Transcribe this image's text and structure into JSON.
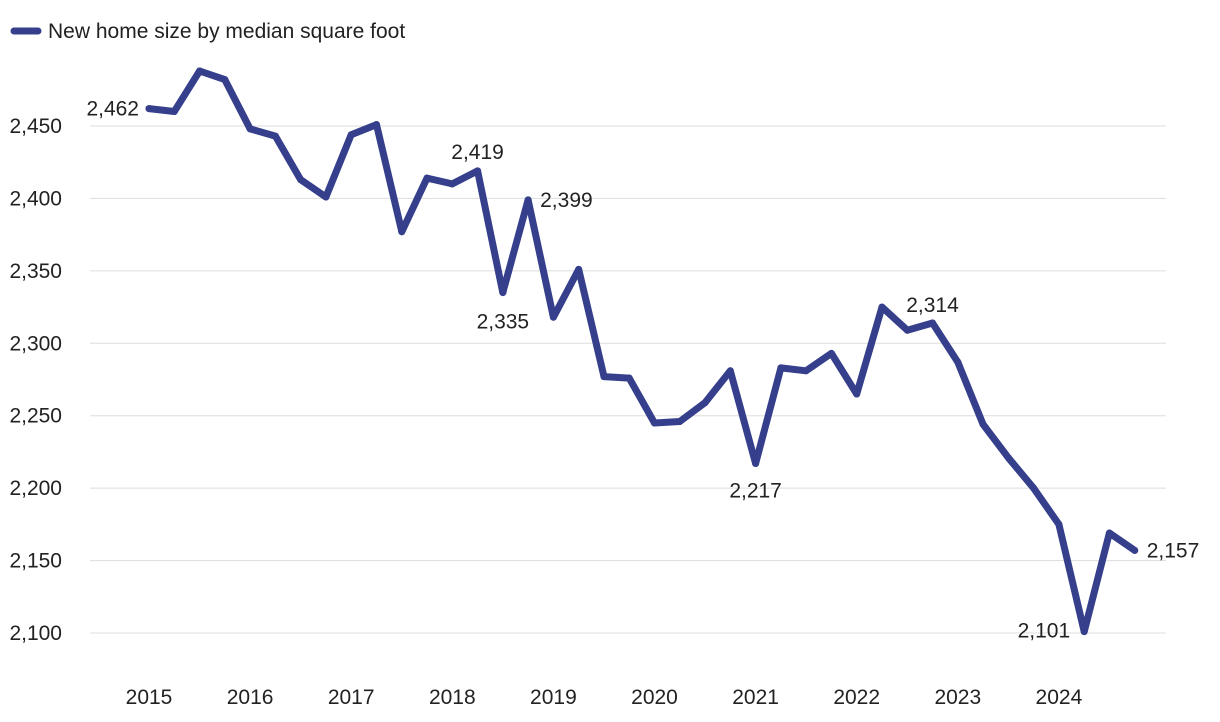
{
  "chart_data": {
    "type": "line",
    "title": "",
    "xlabel": "",
    "ylabel": "",
    "ylim": [
      2100,
      2450
    ],
    "yticks": [
      2100,
      2150,
      2200,
      2250,
      2300,
      2350,
      2400,
      2450
    ],
    "ytick_labels": [
      "2,100",
      "2,150",
      "2,200",
      "2,250",
      "2,300",
      "2,350",
      "2,400",
      "2,450"
    ],
    "xticks": [
      2015,
      2016,
      2017,
      2018,
      2019,
      2020,
      2021,
      2022,
      2023,
      2024
    ],
    "xtick_labels": [
      "2015",
      "2016",
      "2017",
      "2018",
      "2019",
      "2020",
      "2021",
      "2022",
      "2023",
      "2024"
    ],
    "grid": true,
    "legend": {
      "position": "top-left",
      "entries": [
        "New home size by median square foot"
      ]
    },
    "series": [
      {
        "name": "New home size by median square foot",
        "color": "#353F8C",
        "x": [
          2015.0,
          2015.25,
          2015.5,
          2015.75,
          2016.0,
          2016.25,
          2016.5,
          2016.75,
          2017.0,
          2017.25,
          2017.5,
          2017.75,
          2018.0,
          2018.25,
          2018.5,
          2018.75,
          2019.0,
          2019.25,
          2019.5,
          2019.75,
          2020.0,
          2020.25,
          2020.5,
          2020.75,
          2021.0,
          2021.25,
          2021.5,
          2021.75,
          2022.0,
          2022.25,
          2022.5,
          2022.75,
          2023.0,
          2023.25,
          2023.5,
          2023.75,
          2024.0,
          2024.25,
          2024.5,
          2024.75
        ],
        "values": [
          2462,
          2460,
          2488,
          2482,
          2448,
          2443,
          2413,
          2401,
          2444,
          2451,
          2377,
          2414,
          2410,
          2419,
          2335,
          2399,
          2318,
          2351,
          2277,
          2276,
          2245,
          2246,
          2259,
          2281,
          2217,
          2283,
          2281,
          2293,
          2265,
          2325,
          2309,
          2314,
          2287,
          2244,
          2221,
          2200,
          2175,
          2101,
          2169,
          2157
        ]
      }
    ],
    "annotations": [
      {
        "index": 0,
        "label": "2,462",
        "place": "left"
      },
      {
        "index": 13,
        "label": "2,419",
        "place": "above"
      },
      {
        "index": 14,
        "label": "2,335",
        "place": "below"
      },
      {
        "index": 15,
        "label": "2,399",
        "place": "right"
      },
      {
        "index": 24,
        "label": "2,217",
        "place": "below"
      },
      {
        "index": 31,
        "label": "2,314",
        "place": "above"
      },
      {
        "index": 37,
        "label": "2,101",
        "place": "left"
      },
      {
        "index": 39,
        "label": "2,157",
        "place": "right"
      }
    ]
  }
}
